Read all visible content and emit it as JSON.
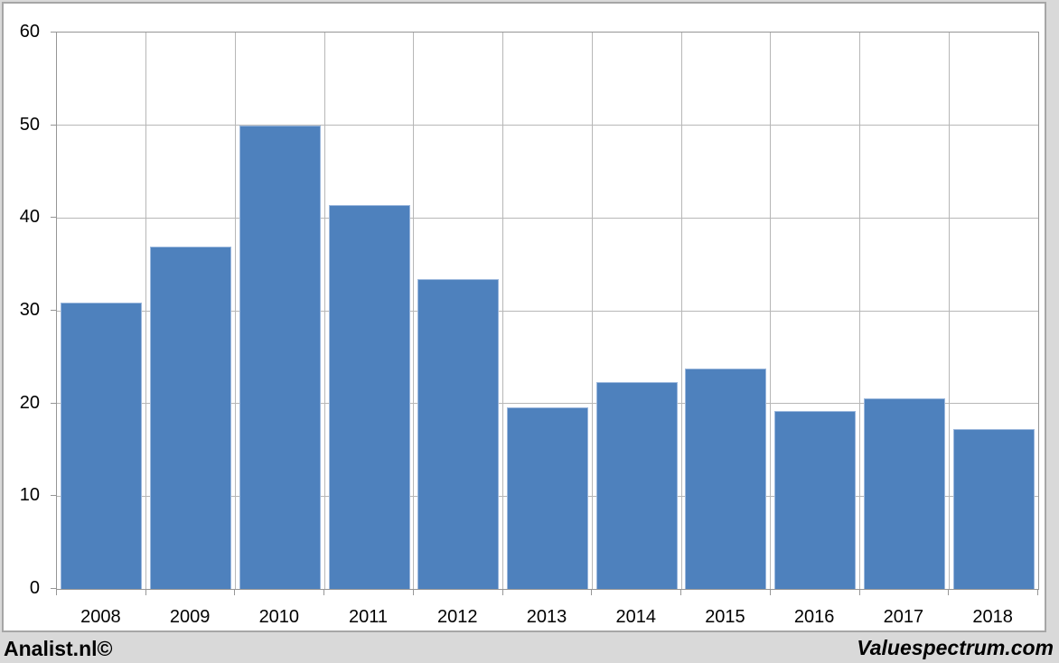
{
  "chart_data": {
    "type": "bar",
    "title": "",
    "categories": [
      "2008",
      "2009",
      "2010",
      "2011",
      "2012",
      "2013",
      "2014",
      "2015",
      "2016",
      "2017",
      "2018"
    ],
    "values": [
      30.9,
      36.9,
      50,
      41.4,
      33.4,
      19.6,
      22.3,
      23.8,
      19.2,
      20.6,
      17.2
    ],
    "ylim": [
      0,
      60
    ],
    "ytick_step": 10,
    "ytick_labels": [
      "0",
      "10",
      "20",
      "30",
      "40",
      "50",
      "60"
    ],
    "xlabel": "",
    "ylabel": "",
    "grid": true,
    "legend": "none",
    "bar_color": "#4E81BD",
    "bar_border_color": "#9CB8DD",
    "gridline_color": "#B7B7B7",
    "axis_color": "#969696",
    "plot_bg": "#FFFFFF",
    "outer_bg": "#D9D9D9"
  },
  "footer": {
    "left_brand": "Analist.nl©",
    "right_brand": "Valuespectrum.com"
  }
}
